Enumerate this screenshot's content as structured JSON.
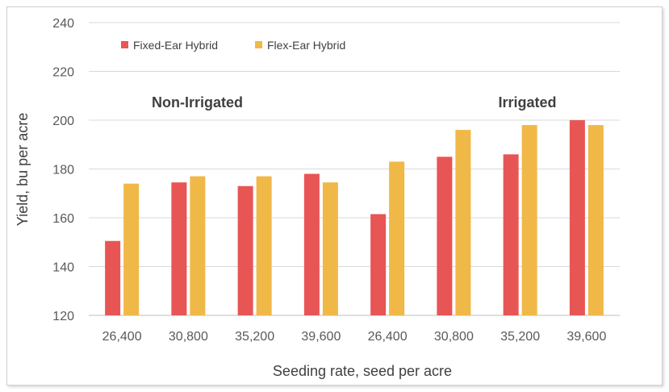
{
  "chart_data": {
    "type": "bar",
    "title": "",
    "xlabel": "Seeding rate, seed per acre",
    "ylabel": "Yield, bu per acre",
    "ylim": [
      120,
      240
    ],
    "yticks": [
      120,
      140,
      160,
      180,
      200,
      220,
      240
    ],
    "grid": true,
    "legend_position": "top-left",
    "categories": [
      "26,400",
      "30,800",
      "35,200",
      "39,600",
      "26,400",
      "30,800",
      "35,200",
      "39,600"
    ],
    "group_labels": [
      {
        "label": "Non-Irrigated",
        "categories": [
          0,
          3
        ]
      },
      {
        "label": "Irrigated",
        "categories": [
          4,
          7
        ]
      }
    ],
    "series": [
      {
        "name": "Fixed-Ear Hybrid",
        "color": "#e85555",
        "values": [
          150.5,
          174.5,
          173,
          178,
          161.5,
          185,
          186,
          200
        ]
      },
      {
        "name": "Flex-Ear Hybrid",
        "color": "#f0b847",
        "values": [
          174,
          177,
          177,
          174.5,
          183,
          196,
          198,
          198
        ]
      }
    ]
  }
}
